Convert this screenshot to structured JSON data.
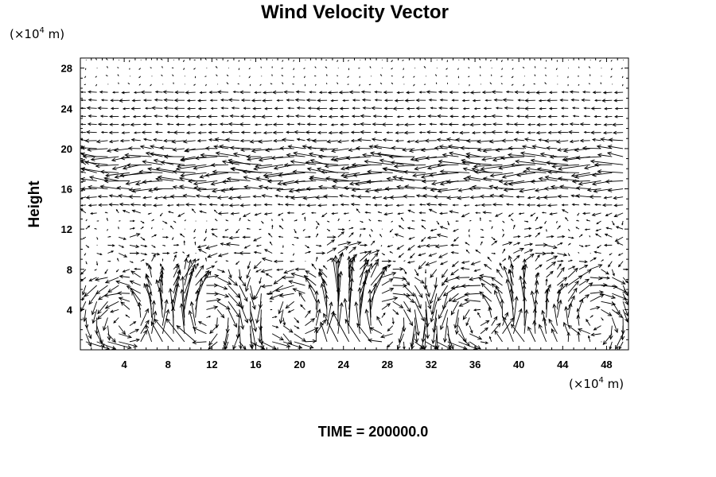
{
  "chart_data": {
    "type": "vector-field",
    "title": "Wind Velocity Vector",
    "ylabel": "Height",
    "y_unit": {
      "prefix": "(×10",
      "exp": "4",
      "suffix": " m)"
    },
    "x_unit": {
      "prefix": "(×10",
      "exp": "4",
      "suffix": " m)"
    },
    "xlim": [
      0,
      50
    ],
    "ylim": [
      0,
      29
    ],
    "x_ticks": [
      4,
      8,
      12,
      16,
      20,
      24,
      28,
      32,
      36,
      40,
      44,
      48
    ],
    "y_ticks": [
      4,
      8,
      12,
      16,
      20,
      24,
      28
    ],
    "x_tick_labels": [
      "4",
      "8",
      "12",
      "16",
      "20",
      "24",
      "28",
      "32",
      "36",
      "40",
      "44",
      "48"
    ],
    "y_tick_labels": [
      "4",
      "8",
      "12",
      "16",
      "20",
      "24",
      "28"
    ],
    "grid": false,
    "vector_field": {
      "x_start": 0.5,
      "x_step": 1.0,
      "x_count": 50,
      "y_start": 0.8,
      "y_step": 0.8,
      "y_count": 36,
      "upper_jet_height": 16,
      "lower_cell_top": 12,
      "vortex_centers": [
        {
          "x": 4.5,
          "y": 3.0,
          "sign": 1
        },
        {
          "x": 11.5,
          "y": 3.0,
          "sign": -1
        },
        {
          "x": 20.0,
          "y": 3.5,
          "sign": 1
        },
        {
          "x": 28.0,
          "y": 3.0,
          "sign": -1
        },
        {
          "x": 36.0,
          "y": 3.0,
          "sign": 1
        },
        {
          "x": 47.0,
          "y": 3.0,
          "sign": -1
        }
      ],
      "updraft_columns": [
        10.0,
        17.5,
        24.0,
        26.0,
        40.0
      ]
    },
    "footer": "TIME = 200000.0"
  }
}
